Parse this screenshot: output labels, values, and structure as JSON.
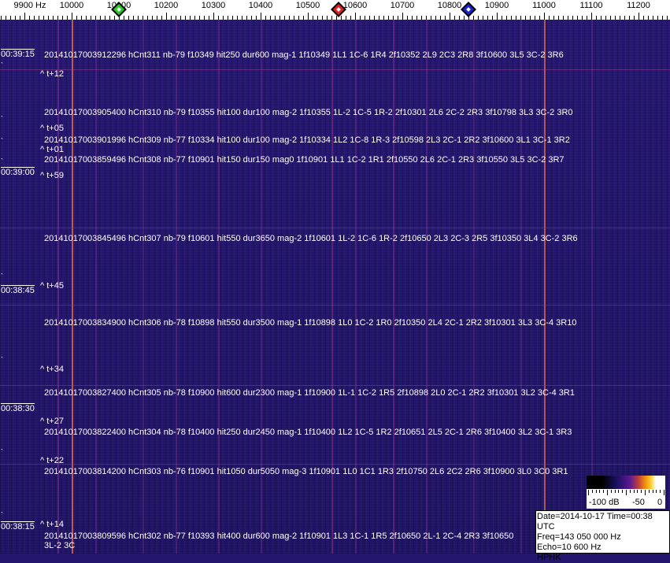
{
  "frequency_scale": {
    "unit_label": "9900 Hz",
    "labels": [
      "10000",
      "10100",
      "10200",
      "10300",
      "10400",
      "10500",
      "10600",
      "10700",
      "10800",
      "10900",
      "11000",
      "11100",
      "11200"
    ],
    "markers": [
      {
        "name": "green-marker",
        "freq_hz": 10100,
        "color": "#22cc22"
      },
      {
        "name": "red-marker",
        "freq_hz": 10565,
        "color": "#dd2222"
      },
      {
        "name": "blue-marker",
        "freq_hz": 10840,
        "color": "#1a22cc"
      }
    ]
  },
  "timestamps": [
    "00:39:15",
    "00:39:00",
    "00:38:45",
    "00:38:30",
    "00:38:15"
  ],
  "time_markers": [
    "^ t+12",
    "^ t+05",
    "^ t+01",
    "^ t+59",
    "^ t+45",
    "^ t+34",
    "^ t+27",
    "^ t+22",
    "^ t+14"
  ],
  "events": [
    "20141017003912296 hCnt311 nb-79 f10349 hit250 dur600 mag-1 1f10349 1L1 1C-6 1R4 2f10352 2L9 2C3 2R8 3f10600 3L5 3C-2 3R6",
    "20141017003905400 hCnt310 nb-79 f10355 hit100 dur100 mag-2 1f10355 1L-2 1C-5 1R-2 2f10301 2L6 2C-2 2R3 3f10798 3L3 3C-2 3R0",
    "20141017003901996 hCnt309 nb-77 f10334 hit100 dur100 mag-2 1f10334 1L2 1C-8 1R-3 2f10598 2L3 2C-1 2R2 3f10600 3L1 3C-1 3R2",
    "20141017003859496 hCnt308 nb-77 f10901 hit150 dur150 mag0 1f10901 1L1 1C-2 1R1 2f10550 2L6 2C-1 2R3 3f10550 3L5 3C-2 3R7",
    "20141017003845496 hCnt307 nb-79 f10601 hit550 dur3650 mag-2 1f10601 1L-2 1C-6 1R-2 2f10650 2L3 2C-3 2R5 3f10350 3L4 3C-2 3R6",
    "20141017003834900 hCnt306 nb-78 f10898 hit550 dur3500 mag-1 1f10898 1L0 1C-2 1R0 2f10350 2L4 2C-1 2R2 3f10301 3L3 3C-4 3R10",
    "20141017003827400 hCnt305 nb-78 f10900 hit600 dur2300 mag-1 1f10900 1L-1 1C-2 1R5 2f10898 2L0 2C-1 2R2 3f10301 3L2 3C-4 3R1",
    "20141017003822400 hCnt304 nb-78 f10400 hit250 dur2450 mag-1 1f10400 1L2 1C-5 1R2 2f10651 2L5 2C-1 2R6 3f10400 3L2 3C-1 3R3",
    "20141017003814200 hCnt303 nb-76 f10901 hit1050 dur5050 mag-3 1f10901 1L0 1C1 1R3 2f10750 2L6 2C2 2R6 3f10900 3L0 3C0 3R1",
    "20141017003809596 hCnt302 nb-77 f10393 hit400 dur600 mag-2 1f10901 1L3 1C-1 1R5 2f10650 2L-1 2C-4 2R3 3f10650 3L-2 3C"
  ],
  "color_bar": {
    "labels": [
      "-100 dB",
      "-50",
      "0"
    ]
  },
  "info": {
    "date_time": "Date=2014-10-17 Time=00:38 UTC",
    "freq": "Freq=143 050 000 Hz",
    "echo": "Echo=10 600 Hz",
    "station": "HPHK"
  }
}
